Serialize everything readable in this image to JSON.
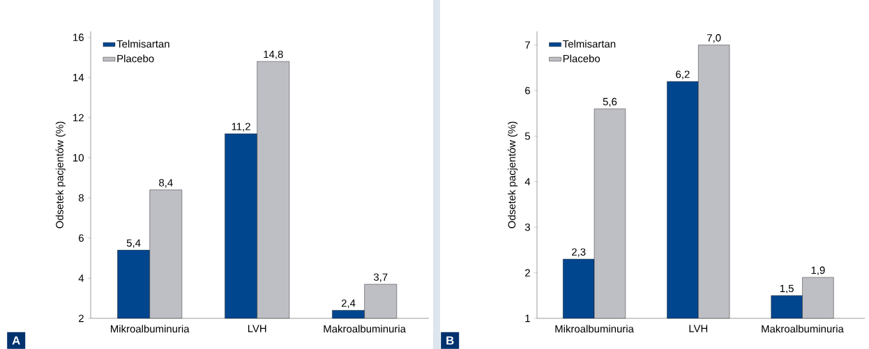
{
  "chart_data": [
    {
      "type": "bar",
      "ylabel": "Odsetek pacjentów (%)",
      "categories": [
        "Mikroalbuminuria",
        "LVH",
        "Makroalbuminuria"
      ],
      "series": [
        {
          "name": "Telmisartan",
          "color": "#00468f",
          "values": [
            5.4,
            11.2,
            2.4
          ],
          "value_labels": [
            "5,4",
            "11,2",
            "2,4"
          ]
        },
        {
          "name": "Placebo",
          "color": "#bebfc4",
          "values": [
            8.4,
            14.8,
            3.7
          ],
          "value_labels": [
            "8,4",
            "14,8",
            "3,7"
          ]
        }
      ],
      "ylim": [
        2,
        16.3
      ],
      "yticks": [
        2,
        4,
        6,
        8,
        10,
        12,
        14,
        16
      ],
      "legend": "top left",
      "grid": false,
      "annotations": [
        "A"
      ]
    },
    {
      "type": "bar",
      "ylabel": "Odsetek pacjentów (%)",
      "categories": [
        "Mikroalbuminuria",
        "LVH",
        "Makroalbuminuria"
      ],
      "series": [
        {
          "name": "Telmisartan",
          "color": "#00468f",
          "values": [
            2.3,
            6.2,
            1.5
          ],
          "value_labels": [
            "2,3",
            "6,2",
            "1,5"
          ]
        },
        {
          "name": "Placebo",
          "color": "#bebfc4",
          "values": [
            5.6,
            7.0,
            1.9
          ],
          "value_labels": [
            "5,6",
            "7,0",
            "1,9"
          ]
        }
      ],
      "ylim": [
        1,
        7.3
      ],
      "yticks": [
        1,
        2,
        3,
        4,
        5,
        6,
        7
      ],
      "legend": "top left",
      "grid": false,
      "annotations": [
        "B"
      ]
    }
  ]
}
